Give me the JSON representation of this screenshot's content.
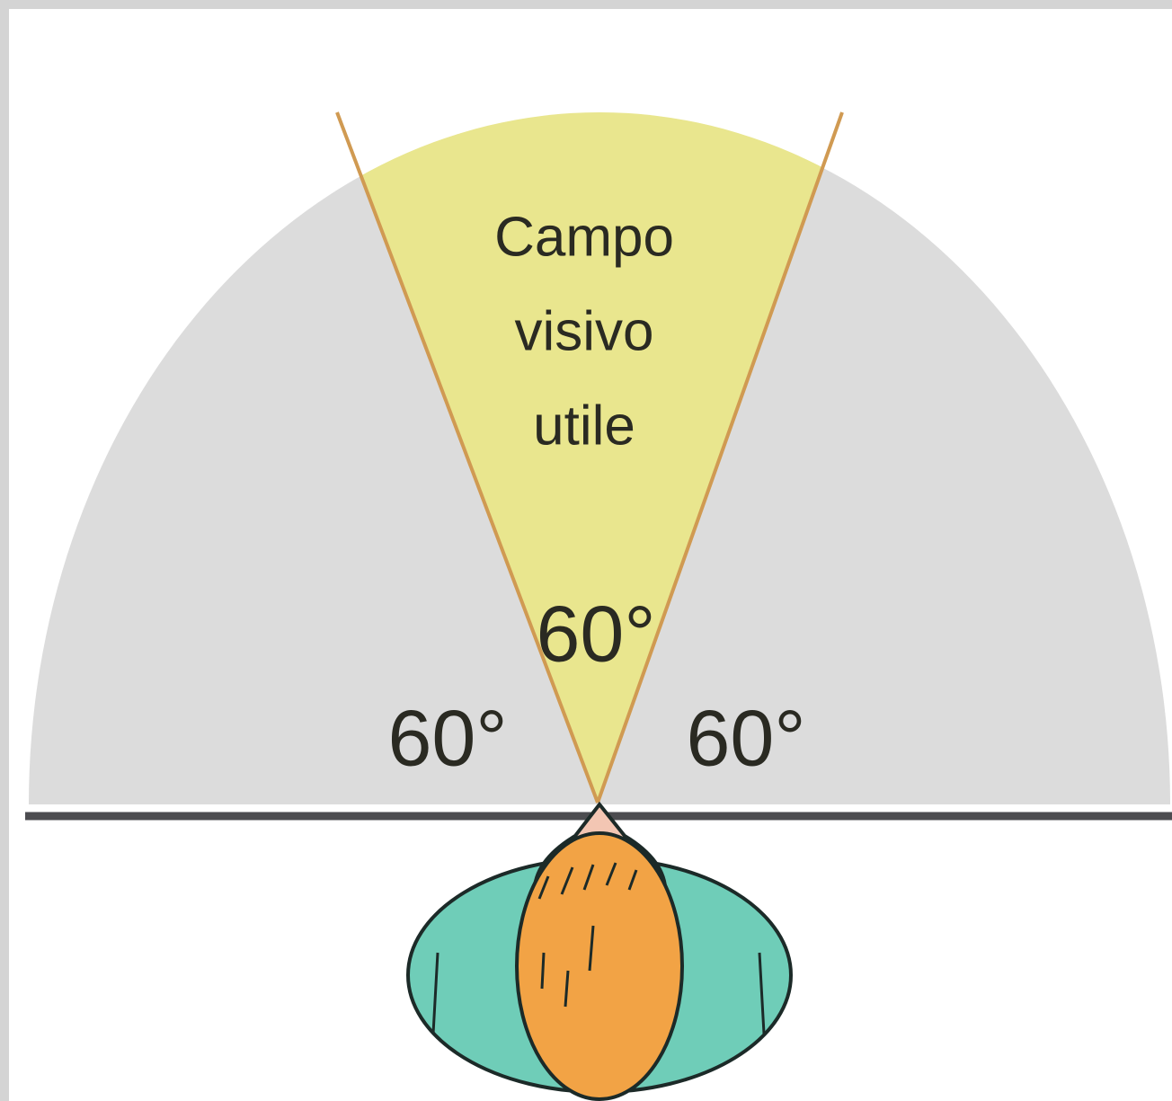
{
  "field": {
    "label_lines": [
      "Campo",
      "visivo",
      "utile"
    ]
  },
  "angles": {
    "center": "60°",
    "left": "60°",
    "right": "60°"
  }
}
